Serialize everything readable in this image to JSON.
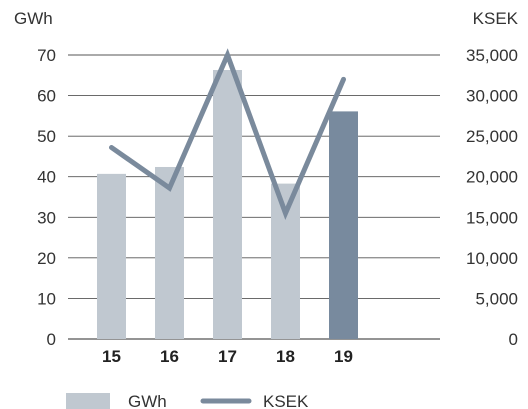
{
  "chart_data": {
    "type": "bar",
    "categories": [
      "15",
      "16",
      "17",
      "18",
      "19"
    ],
    "left_axis": {
      "unit_label": "GWh",
      "ylim": [
        0,
        70
      ],
      "ticks": [
        0,
        10,
        20,
        30,
        40,
        50,
        60,
        70
      ],
      "tick_labels": [
        "0",
        "10",
        "20",
        "30",
        "40",
        "50",
        "60",
        "70"
      ]
    },
    "right_axis": {
      "unit_label": "KSEK",
      "ylim": [
        0,
        35000
      ],
      "ticks": [
        0,
        5000,
        10000,
        15000,
        20000,
        25000,
        30000,
        35000
      ],
      "tick_labels": [
        "0",
        "5,000",
        "10,000",
        "15,000",
        "20,000",
        "25,000",
        "30,000",
        "35,000"
      ]
    },
    "series": [
      {
        "name": "GWh",
        "type": "bar",
        "axis": "left",
        "values": [
          40.7,
          42.4,
          66.3,
          38.3,
          56.1
        ],
        "color": "#c0c8d0",
        "highlight_color": "#788a9e",
        "highlight_index": 4
      },
      {
        "name": "KSEK",
        "type": "line",
        "axis": "right",
        "values": [
          23600,
          18600,
          35000,
          15500,
          32000
        ],
        "color": "#7a8a9c"
      }
    ],
    "grid": true,
    "legend_position": "bottom-left"
  },
  "legend": {
    "items": [
      {
        "label": "GWh",
        "color": "#c0c8d0",
        "kind": "bar"
      },
      {
        "label": "KSEK",
        "color": "#7a8a9c",
        "kind": "line"
      }
    ]
  }
}
